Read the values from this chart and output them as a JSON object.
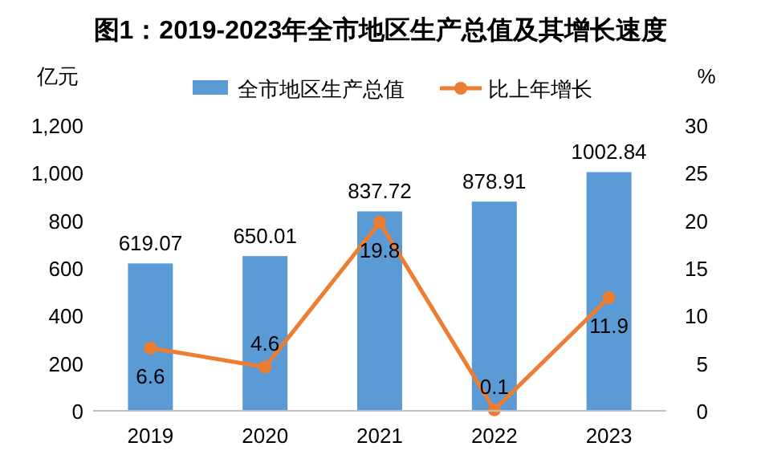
{
  "chart_data": {
    "type": "bar",
    "title": "图1：2019-2023年全市地区生产总值及其增长速度",
    "ylabel": "亿元",
    "y2label": "%",
    "categories": [
      "2019",
      "2020",
      "2021",
      "2022",
      "2023"
    ],
    "series": [
      {
        "name": "全市地区生产总值",
        "color": "#5b9bd5",
        "values": [
          619.07,
          650.01,
          837.72,
          878.91,
          1002.84
        ]
      },
      {
        "name": "比上年增长",
        "type": "line",
        "axis": "y2",
        "color": "#ed7d31",
        "marker": "circle",
        "values": [
          6.6,
          4.6,
          19.8,
          0.1,
          11.9
        ]
      }
    ],
    "ylim": [
      0,
      1200
    ],
    "yticks": [
      0,
      200,
      400,
      600,
      800,
      {
        "value": 1000,
        "label": "1,000"
      },
      {
        "value": 1200,
        "label": "1,200"
      }
    ],
    "y2lim": [
      0,
      30
    ],
    "y2ticks": [
      0,
      5,
      10,
      15,
      20,
      25,
      30
    ],
    "data_labels": true,
    "legend": "top",
    "grid": false
  }
}
